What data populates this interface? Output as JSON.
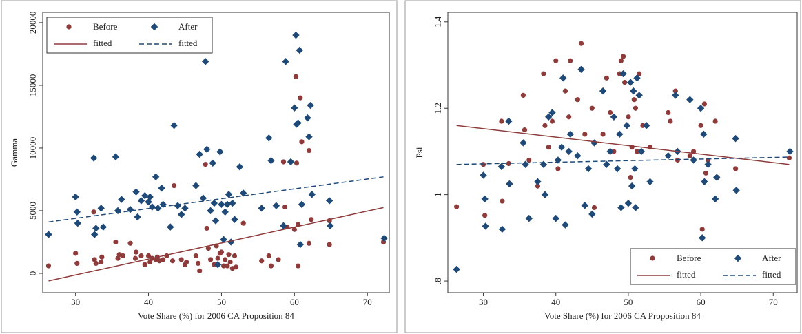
{
  "chart_data": [
    {
      "type": "scatter",
      "x_label": "Vote Share (%) for 2006 CA Proposition 84",
      "y_label": "Gamma",
      "xlim": [
        25.5,
        73
      ],
      "ylim": [
        -1540,
        20820
      ],
      "xticks": [
        30,
        40,
        50,
        60,
        70
      ],
      "yticks": [
        0,
        5000,
        10000,
        15000,
        20000
      ],
      "legend": "upper left",
      "series": [
        {
          "name": "Before",
          "color": "#8e3b3b",
          "marker": "circle",
          "x": [
            26.3,
            30,
            30.2,
            32.5,
            32.6,
            32.8,
            33.5,
            33.6,
            35.5,
            35.8,
            36,
            36.5,
            37.5,
            38.2,
            38.3,
            39,
            39.5,
            40,
            40.2,
            40.5,
            41,
            41.2,
            41.5,
            42,
            42.5,
            43.5,
            43.3,
            44.5,
            45,
            45.2,
            46.5,
            46.8,
            47,
            47.8,
            48,
            48.2,
            48.5,
            49,
            49.3,
            49.5,
            49.8,
            50,
            50.3,
            50.5,
            50.8,
            51,
            51.2,
            51.5,
            51.8,
            52,
            53,
            55.5,
            56.5,
            56.8,
            57.8,
            58.5,
            58.7,
            59,
            60,
            60.2,
            60.3,
            60.5,
            60.5,
            60.8,
            61,
            62,
            62,
            62.3,
            64.8,
            64.8,
            72.2
          ],
          "values": [
            600,
            1600,
            800,
            4900,
            1100,
            800,
            900,
            1300,
            2500,
            1200,
            1500,
            1400,
            2400,
            1200,
            1700,
            1400,
            700,
            1400,
            900,
            1200,
            1100,
            1300,
            1000,
            1100,
            1400,
            7000,
            1000,
            1100,
            700,
            900,
            1400,
            800,
            200,
            8700,
            3600,
            2000,
            1100,
            700,
            2200,
            1200,
            1600,
            1700,
            600,
            1100,
            600,
            1500,
            900,
            400,
            1400,
            500,
            4000,
            1000,
            1400,
            600,
            1100,
            8900,
            5300,
            3700,
            3500,
            15700,
            8800,
            600,
            3900,
            14000,
            10500,
            2400,
            9800,
            4300,
            2300,
            4200,
            2500
          ]
        },
        {
          "name": "After",
          "color": "#1f4a78",
          "marker": "diamond",
          "x": [
            26.3,
            30,
            30.2,
            30.3,
            32.5,
            32.6,
            32.8,
            33.5,
            33.8,
            35.5,
            35.8,
            36.3,
            37.5,
            38.3,
            38.5,
            39,
            39.5,
            40,
            40.2,
            40.5,
            41,
            41.3,
            41.8,
            42,
            43,
            43.5,
            44,
            44.5,
            45,
            46.5,
            47,
            47.5,
            47.8,
            48,
            48.5,
            48.8,
            49,
            49.2,
            49.5,
            49.8,
            50,
            50.3,
            50.5,
            50.8,
            51,
            51.3,
            51.5,
            51.8,
            52.5,
            53,
            55.5,
            56.5,
            56.8,
            57.5,
            58.5,
            58.8,
            59.5,
            60,
            60.2,
            60.3,
            60.5,
            60.7,
            60.8,
            61,
            61.8,
            62,
            62.2,
            62.4,
            64.8,
            64.9,
            72.3
          ],
          "values": [
            3100,
            6100,
            4900,
            4000,
            9200,
            3100,
            3600,
            5200,
            3700,
            9300,
            5000,
            5900,
            5100,
            6500,
            4500,
            5800,
            6200,
            5700,
            6100,
            5300,
            7700,
            5200,
            6800,
            5500,
            3700,
            11800,
            5400,
            4700,
            5200,
            7000,
            9500,
            6000,
            16900,
            9900,
            5000,
            8800,
            5600,
            4200,
            700,
            9700,
            5500,
            2700,
            4900,
            5500,
            6300,
            2500,
            5600,
            4300,
            8500,
            6400,
            5200,
            10800,
            9000,
            5400,
            3800,
            16900,
            8900,
            13200,
            19000,
            11900,
            12000,
            17800,
            2300,
            5500,
            12400,
            10900,
            13400,
            6300,
            5800,
            3800,
            2800
          ]
        },
        {
          "name": "fitted",
          "color": "#8e3b3b",
          "line_style": "solid",
          "x": [
            26.3,
            72.2
          ],
          "values": [
            -600,
            5250
          ]
        },
        {
          "name": "fitted",
          "color": "#1f4a78",
          "line_style": "dashed",
          "x": [
            26.3,
            72.2
          ],
          "values": [
            4100,
            7700
          ]
        }
      ]
    },
    {
      "type": "scatter",
      "x_label": "Vote Share (%) for 2006 CA Proposition 84",
      "y_label": "Psi",
      "xlim": [
        25.1,
        73.3
      ],
      "ylim": [
        0.773,
        1.422
      ],
      "xticks": [
        30,
        40,
        50,
        60,
        70
      ],
      "yticks": [
        {
          "value": 0.8,
          "label": ".8"
        },
        1,
        1.2,
        1.4
      ],
      "legend": "lower right",
      "series": [
        {
          "name": "Before",
          "color": "#8e3b3b",
          "marker": "circle",
          "x": [
            26.3,
            30,
            30.2,
            32.5,
            32.6,
            33.5,
            35.5,
            35.7,
            36.3,
            37.5,
            38.3,
            38.5,
            39,
            39.5,
            40,
            40.3,
            41,
            41.3,
            41.8,
            42,
            43,
            43.5,
            44,
            44.5,
            45,
            45.3,
            46.5,
            47,
            47.5,
            48,
            48.8,
            49,
            49.3,
            49.5,
            50,
            50.3,
            50.5,
            50.8,
            51,
            51.2,
            51.5,
            52,
            53,
            55.5,
            55.8,
            56.5,
            56.8,
            58.5,
            59,
            60,
            60.2,
            60.5,
            60.7,
            61,
            62,
            62.3,
            64.8,
            72.2
          ],
          "values": [
            0.972,
            1.07,
            0.952,
            1.17,
            0.985,
            1.072,
            1.23,
            1.15,
            1.08,
            1.02,
            1.28,
            1.16,
            1.11,
            1.17,
            1.31,
            1.06,
            1.27,
            1.24,
            1.18,
            1.31,
            1.22,
            1.35,
            1.14,
            1.06,
            1.2,
            0.97,
            1.14,
            1.27,
            1.19,
            1.1,
            1.28,
            1.31,
            1.32,
            1.26,
            1.18,
            1.04,
            1.11,
            1.22,
            1.2,
            1.1,
            1.28,
            1.16,
            1.11,
            1.19,
            1.17,
            1.24,
            1.08,
            1.09,
            1.1,
            1.16,
            0.92,
            1.21,
            1.05,
            1.08,
            1.17,
            1.04,
            1.06,
            1.085
          ]
        },
        {
          "name": "After",
          "color": "#1f4a78",
          "marker": "diamond",
          "x": [
            26.3,
            30,
            30.2,
            30.3,
            32.5,
            32.6,
            33.5,
            33.6,
            35.5,
            35.8,
            36.3,
            37.5,
            38.3,
            38.5,
            39,
            39.5,
            40,
            40.3,
            40.8,
            41,
            41.3,
            41.8,
            42,
            43,
            43.5,
            44,
            44.5,
            45,
            45.3,
            46.5,
            47,
            47.5,
            48,
            48.5,
            48.8,
            49,
            49.3,
            49.8,
            50,
            50.3,
            50.5,
            50.7,
            50.9,
            51,
            51.2,
            51.5,
            51.8,
            52.5,
            53,
            55.5,
            56.5,
            56.8,
            58.5,
            59,
            60,
            60.2,
            60.4,
            60.5,
            61,
            62,
            62.2,
            64.8,
            64.9,
            72.3
          ],
          "values": [
            0.827,
            1.045,
            0.99,
            0.927,
            1.065,
            0.92,
            1.17,
            1.025,
            1.12,
            1.07,
            0.945,
            1.03,
            1.07,
            1.0,
            1.18,
            1.19,
            0.945,
            1.08,
            1.11,
            1.27,
            0.93,
            1.1,
            1.14,
            1.09,
            1.29,
            0.975,
            1.06,
            0.955,
            1.12,
            1.24,
            1.07,
            1.1,
            1.18,
            1.06,
            1.14,
            0.97,
            1.28,
            1.16,
            0.98,
            1.26,
            1.02,
            1.24,
            1.06,
            0.97,
            1.27,
            1.23,
            1.1,
            1.16,
            1.03,
            1.09,
            1.23,
            1.1,
            1.22,
            1.08,
            1.2,
            0.9,
            1.14,
            1.03,
            1.07,
            0.99,
            1.04,
            1.13,
            1.01,
            1.1
          ]
        },
        {
          "name": "fitted",
          "color": "#8e3b3b",
          "line_style": "solid",
          "x": [
            26.3,
            72.2
          ],
          "values": [
            1.16,
            1.07
          ]
        },
        {
          "name": "fitted",
          "color": "#1f4a78",
          "line_style": "dashed",
          "x": [
            26.3,
            72.2
          ],
          "values": [
            1.07,
            1.087
          ]
        }
      ]
    }
  ]
}
